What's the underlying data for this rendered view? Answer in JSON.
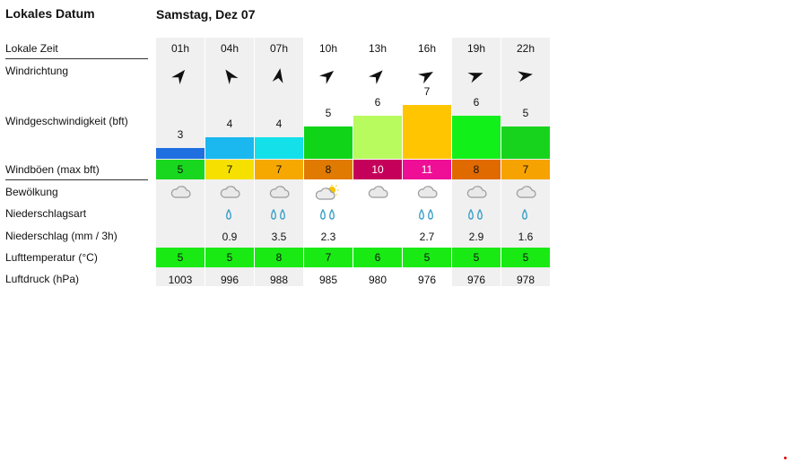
{
  "header": {
    "title": "Lokales Datum",
    "date": "Samstag, Dez 07"
  },
  "labels": {
    "time": "Lokale Zeit",
    "wind_dir": "Windrichtung",
    "wind_speed": "Windgeschwindigkeit (bft)",
    "gusts": "Windböen (max bft)",
    "clouds": "Bewölkung",
    "precip_type": "Niederschlagsart",
    "precip": "Niederschlag (mm / 3h)",
    "temp": "Lufttemperatur (°C)",
    "pressure": "Luftdruck (hPa)"
  },
  "columns": [
    {
      "time": "01h",
      "dir_deg": 40,
      "speed": "3",
      "speed_color": "#1f6fe0",
      "gust": "5",
      "gust_color": "#19d61f",
      "cloud": "cloud-icon",
      "drops": "",
      "precip": "",
      "temp": "5",
      "pressure": "1003"
    },
    {
      "time": "04h",
      "dir_deg": -35,
      "speed": "4",
      "speed_color": "#1ab8ef",
      "gust": "7",
      "gust_color": "#f5e000",
      "cloud": "cloud-icon",
      "drops": "0",
      "precip": "0.9",
      "temp": "5",
      "pressure": "996"
    },
    {
      "time": "07h",
      "dir_deg": 10,
      "speed": "4",
      "speed_color": "#14e0ea",
      "gust": "7",
      "gust_color": "#f6a800",
      "cloud": "cloud-icon",
      "drops": "00",
      "precip": "3.5",
      "temp": "8",
      "pressure": "988"
    },
    {
      "time": "10h",
      "dir_deg": 50,
      "speed": "5",
      "speed_color": "#10d418",
      "gust": "8",
      "gust_color": "#e07a00",
      "cloud": "partly-cloudy-icon",
      "drops": "00",
      "precip": "2.3",
      "temp": "7",
      "pressure": "985"
    },
    {
      "time": "13h",
      "dir_deg": 45,
      "speed": "6",
      "speed_color": "#b7fb5e",
      "gust": "10",
      "gust_color": "#c4005a",
      "cloud": "cloud-icon",
      "drops": "",
      "precip": "",
      "temp": "6",
      "pressure": "980"
    },
    {
      "time": "16h",
      "dir_deg": 60,
      "speed": "7",
      "speed_color": "#ffc500",
      "gust": "11",
      "gust_color": "#ee0f96",
      "cloud": "cloud-icon",
      "drops": "00",
      "precip": "2.7",
      "temp": "5",
      "pressure": "976"
    },
    {
      "time": "19h",
      "dir_deg": 70,
      "speed": "6",
      "speed_color": "#12f01a",
      "gust": "8",
      "gust_color": "#e06a00",
      "cloud": "cloud-icon",
      "drops": "00",
      "precip": "2.9",
      "temp": "5",
      "pressure": "976"
    },
    {
      "time": "22h",
      "dir_deg": 80,
      "speed": "5",
      "speed_color": "#18d31e",
      "gust": "7",
      "gust_color": "#f6a200",
      "cloud": "cloud-icon",
      "drops": "0",
      "precip": "1.6",
      "temp": "5",
      "pressure": "978"
    }
  ],
  "temp_color": "#19ea14"
}
